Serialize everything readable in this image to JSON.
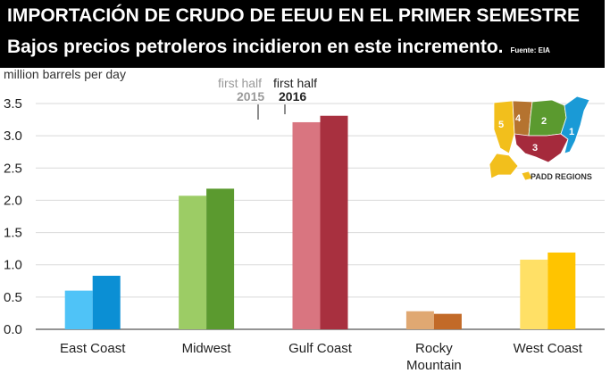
{
  "header": {
    "title": "IMPORTACIÓN DE CRUDO DE EEUU EN EL PRIMER SEMESTRE",
    "subtitle": "Bajos precios petroleros incidieron en este incremento.",
    "source": "Fuente: EIA"
  },
  "annotations": {
    "period_a_line1": "first half",
    "period_a_line2": "2015",
    "period_b_line1": "first half",
    "period_b_line2": "2016"
  },
  "map": {
    "label": "PADD REGIONS",
    "regions": [
      "1",
      "2",
      "3",
      "4",
      "5"
    ],
    "colors": {
      "1": "#1a9ad6",
      "2": "#5b9a2f",
      "3": "#a52a3c",
      "4": "#b5732f",
      "5": "#f2bf1c"
    }
  },
  "chart_data": {
    "type": "bar",
    "ylabel": "million barrels per day",
    "ylim": [
      0,
      3.5
    ],
    "yticks": [
      "0.0",
      "0.5",
      "1.0",
      "1.5",
      "2.0",
      "2.5",
      "3.0",
      "3.5"
    ],
    "categories": [
      {
        "line1": "East Coast",
        "line2": ""
      },
      {
        "line1": "Midwest",
        "line2": ""
      },
      {
        "line1": "Gulf Coast",
        "line2": ""
      },
      {
        "line1": "Rocky",
        "line2": "Mountain"
      },
      {
        "line1": "West Coast",
        "line2": ""
      }
    ],
    "series": [
      {
        "name": "first half 2015",
        "values": [
          0.6,
          2.07,
          3.21,
          0.28,
          1.08
        ]
      },
      {
        "name": "first half 2016",
        "values": [
          0.83,
          2.18,
          3.31,
          0.24,
          1.19
        ]
      }
    ],
    "colors_2015": [
      "#4fc3f7",
      "#9ccc65",
      "#d97580",
      "#e0a872",
      "#ffe066"
    ],
    "colors_2016": [
      "#0b8fd4",
      "#5b9a2f",
      "#a8303f",
      "#c26a28",
      "#ffc400"
    ],
    "grid": true
  }
}
